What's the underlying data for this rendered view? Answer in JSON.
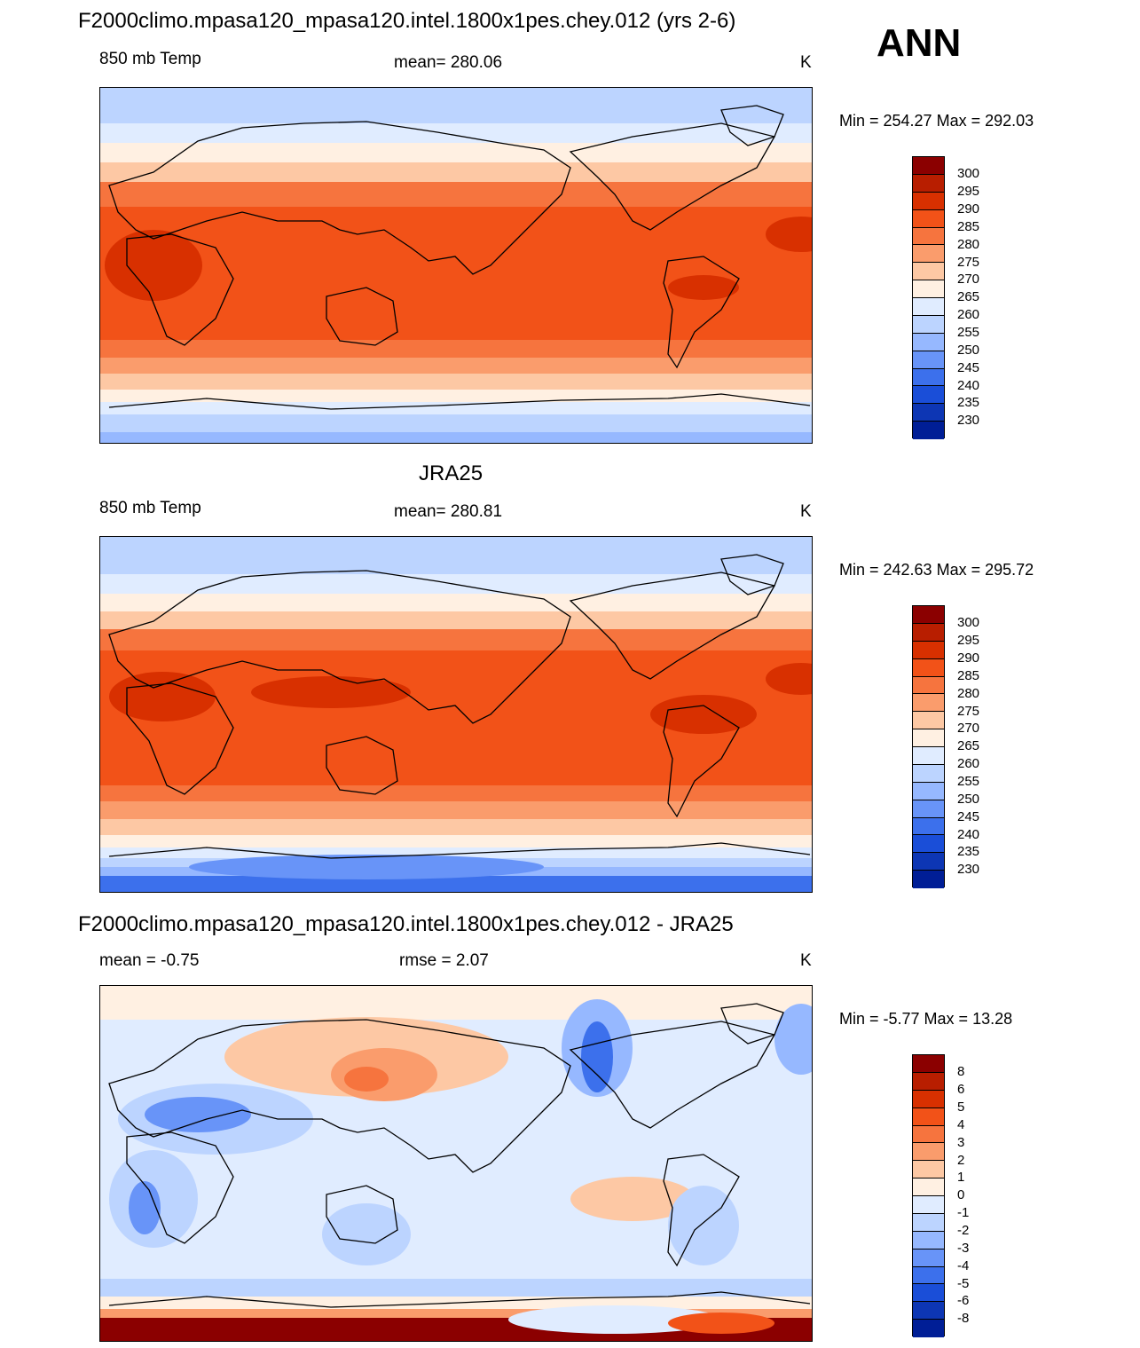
{
  "season": "ANN",
  "panels": [
    {
      "title": "F2000climo.mpasa120_mpasa120.intel.1800x1pes.chey.012 (yrs 2-6)",
      "left_label": "850 mb Temp",
      "center_label": "mean= 280.06",
      "units": "K",
      "minmax": "Min = 254.27 Max = 292.03",
      "colorbar_labels": [
        "300",
        "295",
        "290",
        "285",
        "280",
        "275",
        "270",
        "265",
        "260",
        "255",
        "250",
        "245",
        "240",
        "235",
        "230"
      ]
    },
    {
      "title": "JRA25",
      "left_label": "850 mb Temp",
      "center_label": "mean= 280.81",
      "units": "K",
      "minmax": "Min = 242.63 Max = 295.72",
      "colorbar_labels": [
        "300",
        "295",
        "290",
        "285",
        "280",
        "275",
        "270",
        "265",
        "260",
        "255",
        "250",
        "245",
        "240",
        "235",
        "230"
      ]
    },
    {
      "title": "F2000climo.mpasa120_mpasa120.intel.1800x1pes.chey.012 - JRA25",
      "left_label": "mean =  -0.75",
      "center_label": "rmse =   2.07",
      "units": "K",
      "minmax": "Min =  -5.77 Max =  13.28",
      "colorbar_labels": [
        "8",
        "6",
        "5",
        "4",
        "3",
        "2",
        "1",
        "0",
        "-1",
        "-2",
        "-3",
        "-4",
        "-5",
        "-6",
        "-8"
      ]
    }
  ],
  "colors": {
    "scale": [
      "#8b0000",
      "#b81e00",
      "#d83000",
      "#f25218",
      "#f6743e",
      "#fa9c6c",
      "#fdc8a4",
      "#fff0e2",
      "#e0ecff",
      "#bcd4ff",
      "#96b8ff",
      "#6894f8",
      "#3c70ec",
      "#1a4ed8",
      "#0d36b4",
      "#001e96"
    ]
  }
}
